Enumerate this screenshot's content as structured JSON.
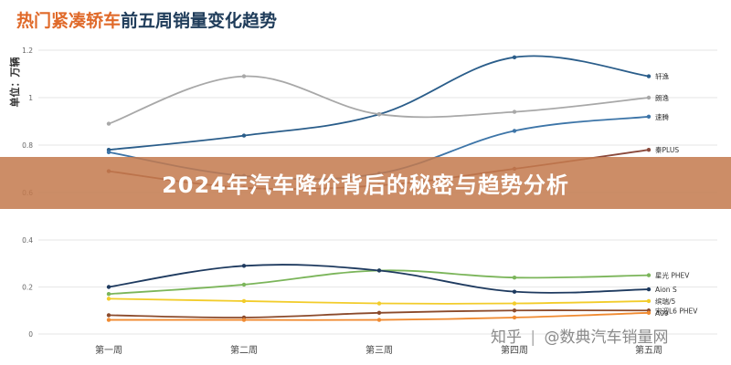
{
  "title": {
    "highlight": "热门紧凑轿车",
    "rest": "前五周销量变化趋势"
  },
  "banner": {
    "text": "2024年汽车降价背后的秘密与趋势分析"
  },
  "watermark": {
    "platform": "知乎",
    "account": "@数典汽车销量网"
  },
  "colors": {
    "title_highlight": "#e06a2a",
    "title_rest": "#1f3c5a",
    "banner_bg": "#c47a4e",
    "banner_text": "#ffffff"
  },
  "chart_data": [
    {
      "type": "line",
      "ylabel": "单位：万辆",
      "x": [
        "第一周",
        "第二周",
        "第三周",
        "第四周",
        "第五周"
      ],
      "ylim": [
        0.6,
        1.2
      ],
      "yticks": [
        "0.6",
        "0.8",
        "1",
        "1.2"
      ],
      "grid": true,
      "legend": "end-labels",
      "series": [
        {
          "name": "轩逸",
          "color": "#2a5d8a",
          "values": [
            0.78,
            0.84,
            0.93,
            1.17,
            1.09
          ]
        },
        {
          "name": "朗逸",
          "color": "#a8a8a8",
          "values": [
            0.89,
            1.09,
            0.93,
            0.94,
            1.0
          ]
        },
        {
          "name": "速腾",
          "color": "#3d75a8",
          "values": [
            0.77,
            0.67,
            0.68,
            0.86,
            0.92
          ]
        },
        {
          "name": "秦PLUS",
          "color": "#8b4a3c",
          "values": [
            0.69,
            0.62,
            0.63,
            0.7,
            0.78
          ]
        }
      ]
    },
    {
      "type": "line",
      "x": [
        "第一周",
        "第二周",
        "第三周",
        "第四周",
        "第五周"
      ],
      "ylim": [
        0,
        0.4
      ],
      "yticks": [
        "0",
        "0.2",
        "0.4"
      ],
      "grid": true,
      "legend": "end-labels",
      "series": [
        {
          "name": "星光 PHEV",
          "color": "#7bb55a",
          "values": [
            0.17,
            0.21,
            0.27,
            0.24,
            0.25
          ]
        },
        {
          "name": "Aion S",
          "color": "#1e3a5f",
          "values": [
            0.2,
            0.29,
            0.27,
            0.18,
            0.19
          ]
        },
        {
          "name": "缤瑞/5",
          "color": "#f2cc2a",
          "values": [
            0.15,
            0.14,
            0.13,
            0.13,
            0.14
          ]
        },
        {
          "name": "宋迎L6 PHEV",
          "color": "#8b4a2b",
          "values": [
            0.08,
            0.07,
            0.09,
            0.1,
            0.1
          ]
        },
        {
          "name": "A09",
          "color": "#f08a30",
          "values": [
            0.06,
            0.06,
            0.06,
            0.07,
            0.09
          ]
        }
      ]
    }
  ]
}
